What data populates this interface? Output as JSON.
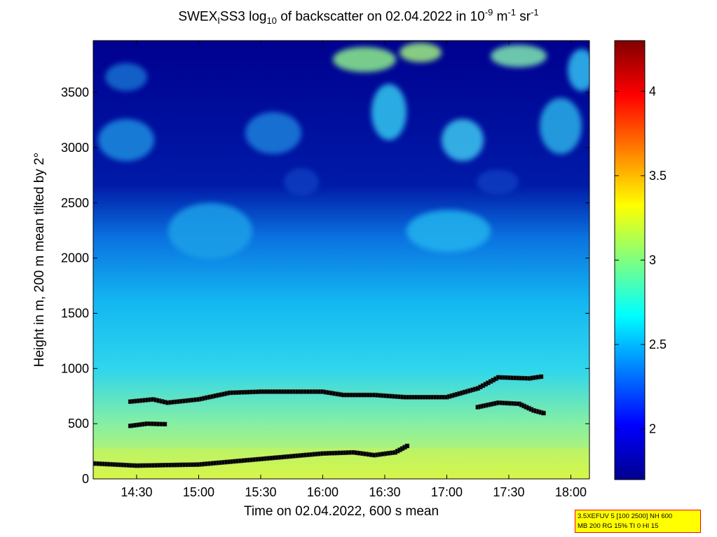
{
  "title": {
    "prefix": "SWEX",
    "sub1": "I",
    "mid": "SS3 log",
    "sub2": "10",
    "rest": " of backscatter on 02.04.2022 in 10",
    "sup1": "-9",
    "unit1": " m",
    "sup2": "-1",
    "unit2": " sr",
    "sup3": "-1"
  },
  "chart_data": {
    "type": "heatmap",
    "xlabel": "Time on 02.04.2022, 600 s mean",
    "ylabel": "Height in m, 200 m mean tilted by 2°",
    "xlim": [
      "14:09",
      "18:09"
    ],
    "ylim": [
      0,
      3970
    ],
    "x_ticks": [
      "14:30",
      "15:00",
      "15:30",
      "16:00",
      "16:30",
      "17:00",
      "17:30",
      "18:00"
    ],
    "y_ticks": [
      0,
      500,
      1000,
      1500,
      2000,
      2500,
      3000,
      3500
    ],
    "colorbar": {
      "range": [
        1.7,
        4.3
      ],
      "ticks": [
        "2",
        "2.5",
        "3",
        "3.5",
        "4"
      ],
      "colormap": "jet"
    },
    "overlays": {
      "cloud_base_layer": [
        {
          "time": "14:09",
          "height": 140
        },
        {
          "time": "14:30",
          "height": 120
        },
        {
          "time": "15:00",
          "height": 130
        },
        {
          "time": "15:30",
          "height": 180
        },
        {
          "time": "16:00",
          "height": 230
        },
        {
          "time": "16:15",
          "height": 240
        },
        {
          "time": "16:25",
          "height": 215
        },
        {
          "time": "16:35",
          "height": 240
        },
        {
          "time": "16:42",
          "height": 310
        }
      ],
      "boundary_layer_top": [
        {
          "time": "14:27",
          "height": 700
        },
        {
          "time": "14:38",
          "height": 720
        },
        {
          "time": "14:45",
          "height": 690
        },
        {
          "time": "15:00",
          "height": 720
        },
        {
          "time": "15:15",
          "height": 780
        },
        {
          "time": "15:30",
          "height": 790
        },
        {
          "time": "16:00",
          "height": 790
        },
        {
          "time": "16:10",
          "height": 760
        },
        {
          "time": "16:25",
          "height": 760
        },
        {
          "time": "16:40",
          "height": 740
        },
        {
          "time": "17:00",
          "height": 740
        },
        {
          "time": "17:15",
          "height": 820
        },
        {
          "time": "17:25",
          "height": 920
        },
        {
          "time": "17:40",
          "height": 910
        },
        {
          "time": "17:47",
          "height": 930
        }
      ],
      "second_layer_low": [
        {
          "time": "14:27",
          "height": 480
        },
        {
          "time": "14:35",
          "height": 500
        },
        {
          "time": "14:45",
          "height": 495
        }
      ],
      "second_layer_right": [
        {
          "time": "17:15",
          "height": 650
        },
        {
          "time": "17:25",
          "height": 690
        },
        {
          "time": "17:35",
          "height": 680
        },
        {
          "time": "17:42",
          "height": 620
        },
        {
          "time": "17:48",
          "height": 590
        }
      ]
    }
  },
  "info_box": {
    "line1": "3.5XEFUV 5 [100 2500] NH 600",
    "line2": "MB 200 RG 15% TI 0 HI 15"
  }
}
